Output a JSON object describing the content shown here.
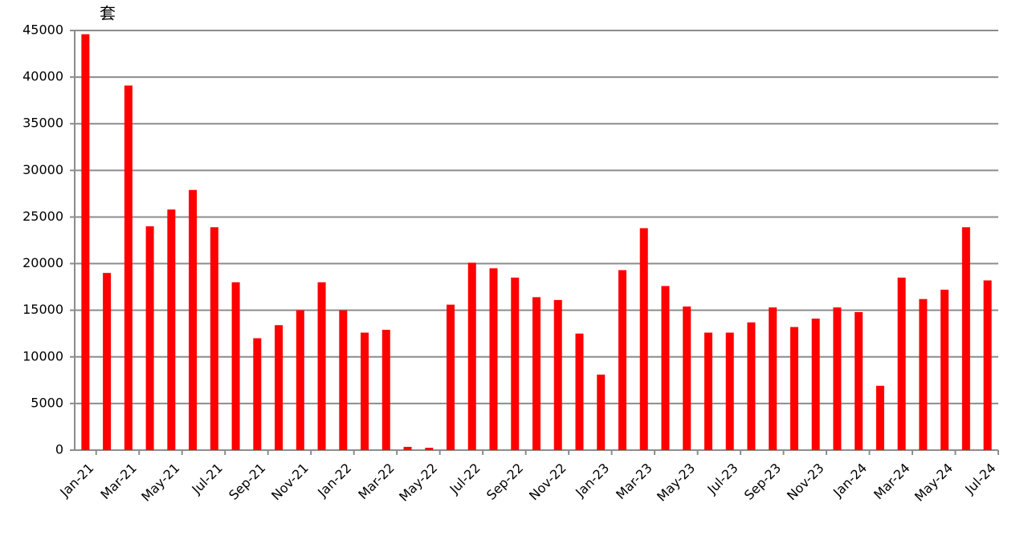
{
  "chart_data": {
    "type": "bar",
    "y_unit_label": "套",
    "categories": [
      "Jan-21",
      null,
      "Mar-21",
      null,
      "May-21",
      null,
      "Jul-21",
      null,
      "Sep-21",
      null,
      "Nov-21",
      null,
      "Jan-22",
      null,
      "Mar-22",
      null,
      "May-22",
      null,
      "Jul-22",
      null,
      "Sep-22",
      null,
      "Nov-22",
      null,
      "Jan-23",
      null,
      "Mar-23",
      null,
      "May-23",
      null,
      "Jul-23",
      null,
      "Sep-23",
      null,
      "Nov-23",
      null,
      "Jan-24",
      null,
      "Mar-24",
      null,
      "May-24",
      null,
      "Jul-24"
    ],
    "values": [
      44600,
      19000,
      39100,
      24000,
      25800,
      27900,
      23900,
      18000,
      12000,
      13400,
      15000,
      18000,
      15000,
      12600,
      12900,
      350,
      250,
      15600,
      20100,
      19500,
      18500,
      16400,
      16100,
      12500,
      8100,
      19300,
      23800,
      17600,
      15400,
      12600,
      12600,
      13700,
      15300,
      13200,
      14100,
      15300,
      14800,
      6900,
      18500,
      16200,
      17200,
      23900,
      18200
    ],
    "color": "#ff0000",
    "ylim": [
      0,
      45000
    ],
    "yticks": [
      0,
      5000,
      10000,
      15000,
      20000,
      25000,
      30000,
      35000,
      40000,
      45000
    ],
    "grid": true
  }
}
